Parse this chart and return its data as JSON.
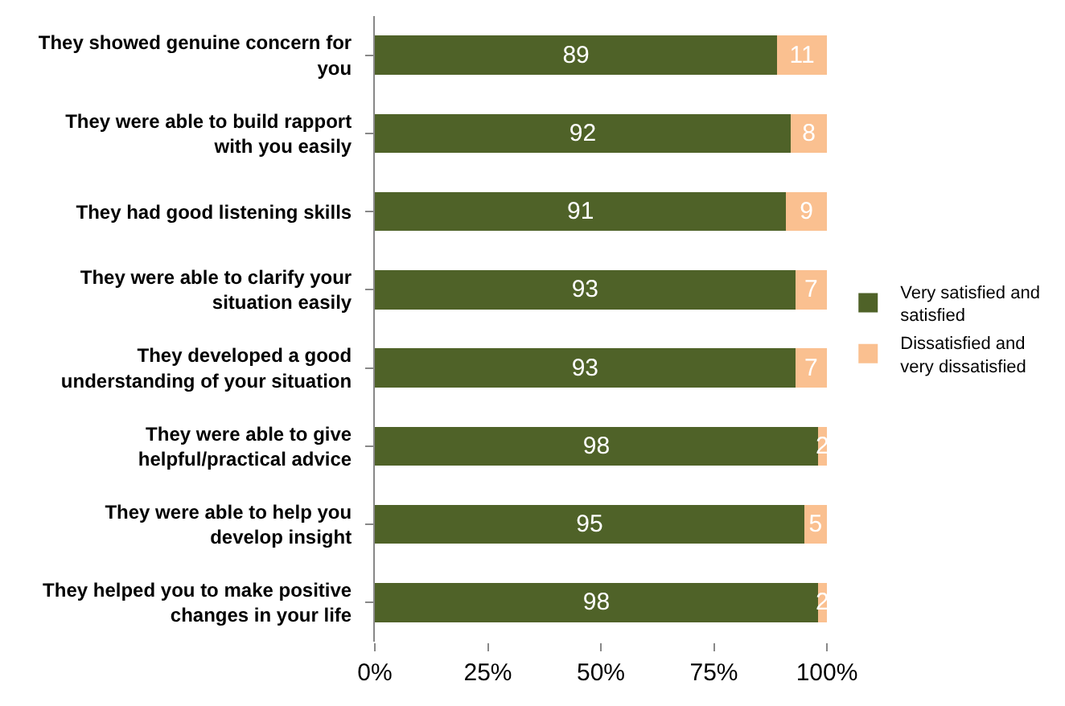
{
  "chart_data": {
    "type": "bar",
    "orientation": "horizontal",
    "stacked": true,
    "data_labels": true,
    "categories": [
      "They showed genuine concern for you",
      "They were able to build rapport with you easily",
      "They had good listening skills",
      "They were able to clarify your situation easily",
      "They developed a good understanding of your situation",
      "They were able to give helpful/practical advice",
      "They were able to help you develop insight",
      "They helped you to make positive changes in your life"
    ],
    "series": [
      {
        "name": "Very satisfied and satisfied",
        "color": "#4f6228",
        "values": [
          89,
          92,
          91,
          93,
          93,
          98,
          95,
          98
        ]
      },
      {
        "name": "Dissatisfied and very dissatisfied",
        "color": "#fac090",
        "values": [
          11,
          8,
          9,
          7,
          7,
          2,
          5,
          2
        ]
      }
    ],
    "xlim": [
      0,
      100
    ],
    "xticks": [
      {
        "value": 0,
        "label": "0%"
      },
      {
        "value": 25,
        "label": "25%"
      },
      {
        "value": 50,
        "label": "50%"
      },
      {
        "value": 75,
        "label": "75%"
      },
      {
        "value": 100,
        "label": "100%"
      }
    ],
    "legend": "right"
  }
}
